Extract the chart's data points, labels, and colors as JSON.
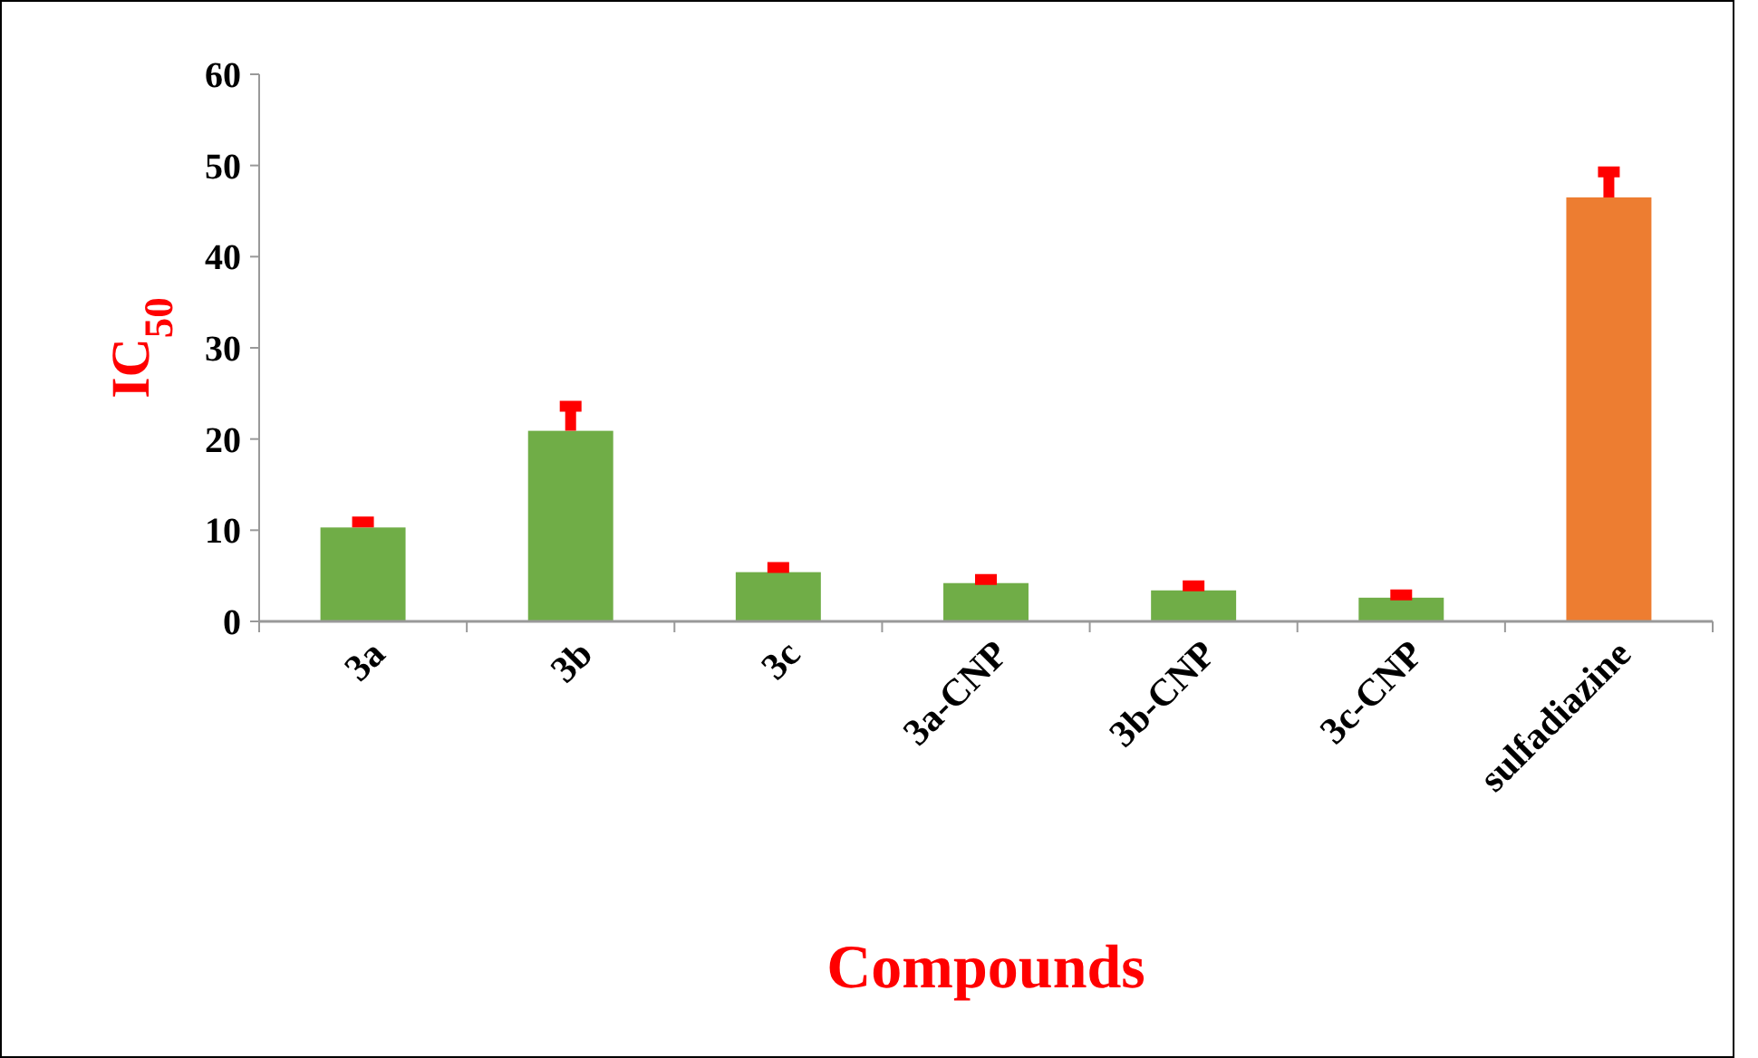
{
  "chart_data": {
    "type": "bar",
    "xlabel": "Compounds",
    "ylabel": "IC$_{50}$",
    "categories": [
      "3a",
      "3b",
      "3c",
      "3a-CNP",
      "3b-CNP",
      "3c-CNP",
      "sulfadiazine"
    ],
    "values": [
      10.3,
      20.9,
      5.4,
      4.2,
      3.4,
      2.6,
      46.5
    ],
    "errors": [
      [
        10.3,
        10.9
      ],
      [
        20.9,
        23.6
      ],
      [
        5.4,
        5.9
      ],
      [
        4.2,
        4.6
      ],
      [
        3.4,
        3.9
      ],
      [
        2.6,
        2.9
      ],
      [
        46.5,
        49.3
      ]
    ],
    "colors": [
      "#70ad47",
      "#70ad47",
      "#70ad47",
      "#70ad47",
      "#70ad47",
      "#70ad47",
      "#ed7d31"
    ],
    "ylim": [
      0,
      60
    ],
    "yticks": [
      0,
      10,
      20,
      30,
      40,
      50,
      60
    ],
    "grid": false
  }
}
